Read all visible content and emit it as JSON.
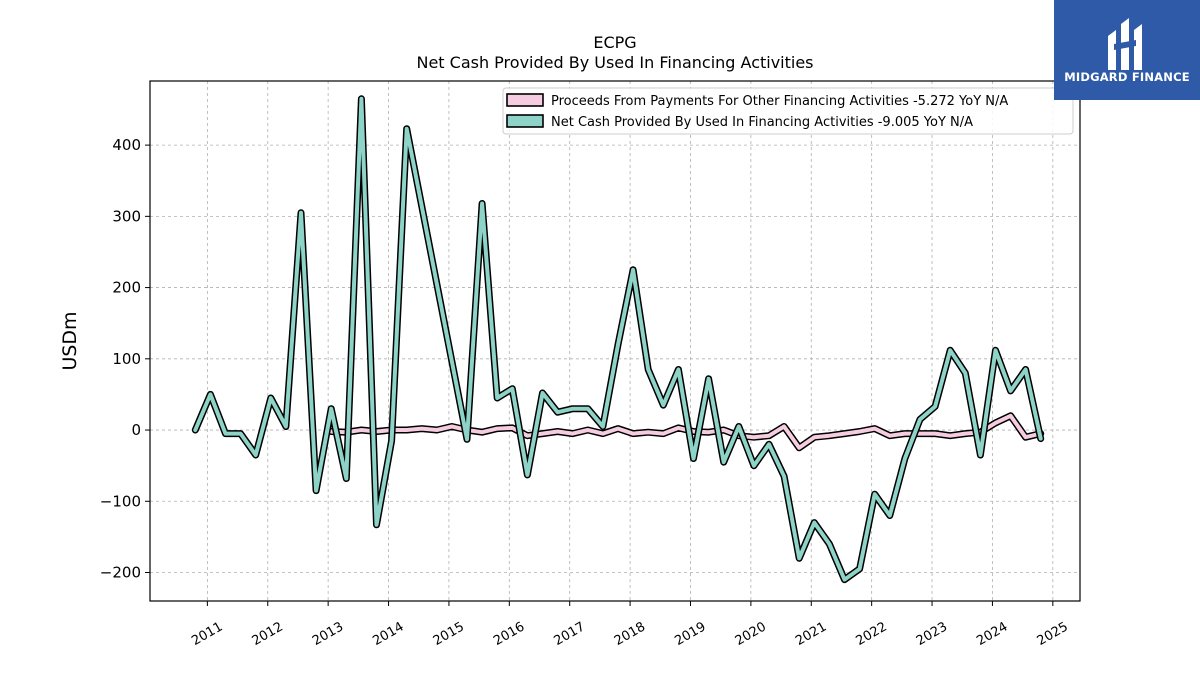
{
  "chart_data": {
    "type": "line",
    "title": "ECPG",
    "subtitle": "Net Cash Provided By Used In Financing Activities",
    "ylabel": "USDm",
    "ylim": [
      -240,
      490
    ],
    "xlim": [
      2010.05,
      2025.45
    ],
    "yticks": [
      -200,
      -100,
      0,
      100,
      200,
      300,
      400
    ],
    "xticks": [
      "2011",
      "2012",
      "2013",
      "2014",
      "2015",
      "2016",
      "2017",
      "2018",
      "2019",
      "2020",
      "2021",
      "2022",
      "2023",
      "2024",
      "2025"
    ],
    "grid": true,
    "legend_position": "top-right",
    "series": [
      {
        "name": "Proceeds From Payments For Other Financing Activities",
        "legend_label": "Proceeds From Payments For Other Financing Activities  -5.272 YoY N/A",
        "color": "#f6cde0",
        "x": [
          2013.05,
          2013.3,
          2013.55,
          2013.8,
          2014.05,
          2014.3,
          2014.55,
          2014.8,
          2015.05,
          2015.3,
          2015.55,
          2015.8,
          2016.05,
          2016.3,
          2016.55,
          2016.8,
          2017.05,
          2017.3,
          2017.55,
          2017.8,
          2018.05,
          2018.3,
          2018.55,
          2018.8,
          2019.05,
          2019.3,
          2019.55,
          2019.8,
          2020.05,
          2020.3,
          2020.55,
          2020.8,
          2021.05,
          2021.3,
          2021.55,
          2021.8,
          2022.05,
          2022.3,
          2022.55,
          2022.8,
          2023.05,
          2023.3,
          2023.55,
          2023.8,
          2024.05,
          2024.3,
          2024.55,
          2024.8
        ],
        "values": [
          -2,
          -3,
          0,
          -2,
          0,
          0,
          2,
          0,
          5,
          0,
          -3,
          2,
          3,
          -8,
          -5,
          -2,
          -5,
          0,
          -5,
          2,
          -5,
          -3,
          -5,
          3,
          -2,
          -3,
          0,
          -8,
          -10,
          -8,
          5,
          -25,
          -10,
          -8,
          -5,
          -2,
          2,
          -8,
          -5,
          -5,
          -5,
          -8,
          -5,
          -3,
          10,
          20,
          -10,
          -5
        ]
      },
      {
        "name": "Net Cash Provided By Used In Financing Activities",
        "legend_label": "Net Cash Provided By Used In Financing Activities  -9.005 YoY N/A",
        "color": "#8dd3c7",
        "x": [
          2010.8,
          2011.05,
          2011.3,
          2011.55,
          2011.8,
          2012.05,
          2012.3,
          2012.55,
          2012.8,
          2013.05,
          2013.3,
          2013.55,
          2013.8,
          2014.05,
          2014.3,
          2015.3,
          2015.55,
          2015.8,
          2016.05,
          2016.3,
          2016.55,
          2016.8,
          2017.05,
          2017.3,
          2017.55,
          2017.8,
          2018.05,
          2018.3,
          2018.55,
          2018.8,
          2019.05,
          2019.3,
          2019.55,
          2019.8,
          2020.05,
          2020.3,
          2020.55,
          2020.8,
          2021.05,
          2021.3,
          2021.55,
          2021.8,
          2022.05,
          2022.3,
          2022.55,
          2022.8,
          2023.05,
          2023.3,
          2023.55,
          2023.8,
          2024.05,
          2024.3,
          2024.55,
          2024.8
        ],
        "values": [
          0,
          50,
          -5,
          -5,
          -35,
          45,
          5,
          305,
          -85,
          30,
          -68,
          465,
          -133,
          -15,
          423,
          -13,
          318,
          45,
          58,
          -63,
          52,
          25,
          30,
          30,
          5,
          120,
          225,
          85,
          35,
          85,
          -40,
          72,
          -45,
          5,
          -50,
          -20,
          -65,
          -180,
          -130,
          -160,
          -210,
          -195,
          -90,
          -120,
          -40,
          15,
          33,
          112,
          80,
          -35,
          112,
          55,
          85,
          -12
        ]
      }
    ]
  },
  "logo": {
    "text": "MIDGARD FINANCE",
    "background": "#2f5aa8"
  }
}
